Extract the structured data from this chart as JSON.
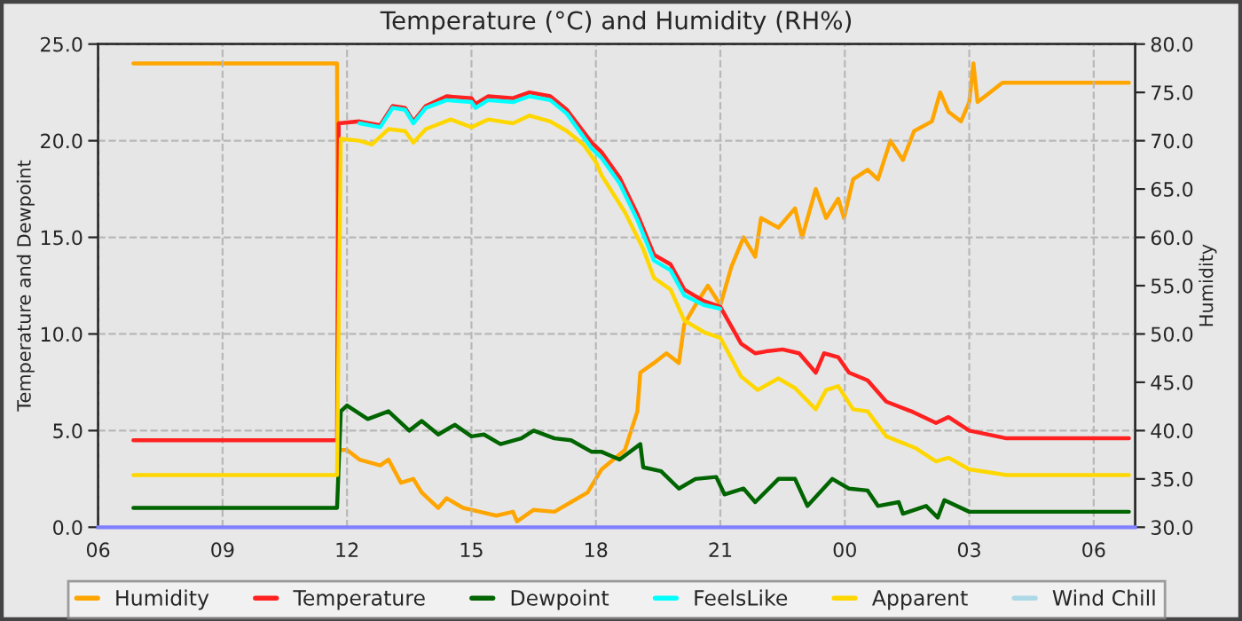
{
  "chart_data": {
    "type": "line",
    "title": "Temperature (°C) and Humidity (RH%)",
    "ylabel": "Temperature and Dewpoint",
    "y2label": "Humidity",
    "xlim": [
      6,
      31
    ],
    "xticks": [
      {
        "value": 6,
        "label": "06"
      },
      {
        "value": 9,
        "label": "09"
      },
      {
        "value": 12,
        "label": "12"
      },
      {
        "value": 15,
        "label": "15"
      },
      {
        "value": 18,
        "label": "18"
      },
      {
        "value": 21,
        "label": "21"
      },
      {
        "value": 24,
        "label": "00"
      },
      {
        "value": 27,
        "label": "03"
      },
      {
        "value": 30,
        "label": "06"
      }
    ],
    "ylim": [
      0,
      25
    ],
    "yticks": [
      {
        "value": 0,
        "label": "0.0"
      },
      {
        "value": 5,
        "label": "5.0"
      },
      {
        "value": 10,
        "label": "10.0"
      },
      {
        "value": 15,
        "label": "15.0"
      },
      {
        "value": 20,
        "label": "20.0"
      },
      {
        "value": 25,
        "label": "25.0"
      }
    ],
    "y2lim": [
      30,
      80
    ],
    "y2ticks": [
      {
        "value": 30,
        "label": "30.0"
      },
      {
        "value": 35,
        "label": "35.0"
      },
      {
        "value": 40,
        "label": "40.0"
      },
      {
        "value": 45,
        "label": "45.0"
      },
      {
        "value": 50,
        "label": "50.0"
      },
      {
        "value": 55,
        "label": "55.0"
      },
      {
        "value": 60,
        "label": "60.0"
      },
      {
        "value": 65,
        "label": "65.0"
      },
      {
        "value": 70,
        "label": "70.0"
      },
      {
        "value": 75,
        "label": "75.0"
      },
      {
        "value": 80,
        "label": "80.0"
      }
    ],
    "grid": true,
    "legend": "bottom",
    "line_style": "solid",
    "series": [
      {
        "name": "Humidity",
        "color": "#ffa500",
        "axis": "y2",
        "x": [
          6.85,
          11.76,
          11.78,
          12.0,
          12.3,
          12.8,
          13.0,
          13.3,
          13.6,
          13.8,
          14.2,
          14.4,
          14.8,
          15.2,
          15.6,
          16.0,
          16.1,
          16.5,
          17.0,
          17.4,
          17.8,
          18.14,
          18.7,
          19.0,
          19.07,
          19.4,
          19.7,
          20.0,
          20.13,
          20.4,
          20.7,
          21.0,
          21.27,
          21.56,
          21.84,
          21.98,
          22.4,
          22.8,
          22.97,
          23.3,
          23.55,
          23.84,
          23.98,
          24.2,
          24.55,
          24.8,
          25.1,
          25.4,
          25.67,
          26.1,
          26.3,
          26.5,
          26.8,
          27.0,
          27.1,
          27.2,
          27.5,
          27.8,
          30.85
        ],
        "values": [
          78,
          78,
          38,
          38,
          37,
          36.4,
          37,
          34.6,
          35,
          33.6,
          32,
          33,
          32,
          31.6,
          31.2,
          31.6,
          30.6,
          31.8,
          31.6,
          32.6,
          33.6,
          36,
          38,
          42,
          46,
          47,
          48,
          47,
          51,
          53,
          55,
          53,
          57,
          60,
          58,
          62,
          61,
          63,
          60,
          65,
          62,
          64,
          62,
          66,
          67,
          66,
          70,
          68,
          71,
          72,
          75,
          73,
          72,
          74,
          78,
          74,
          75,
          76,
          76
        ]
      },
      {
        "name": "Temperature",
        "color": "#ff2020",
        "x": [
          6.85,
          11.76,
          11.8,
          12.3,
          12.8,
          13.1,
          13.4,
          13.6,
          13.9,
          14.4,
          15.0,
          15.1,
          15.4,
          16.0,
          16.4,
          16.9,
          17.3,
          17.9,
          18.14,
          18.57,
          19.0,
          19.4,
          19.8,
          20.13,
          20.6,
          21.0,
          21.5,
          21.84,
          22.1,
          22.5,
          22.9,
          23.3,
          23.5,
          23.84,
          24.1,
          24.55,
          25.0,
          25.6,
          26.2,
          26.5,
          27.0,
          27.9,
          30.85
        ],
        "values": [
          4.5,
          4.5,
          20.9,
          21.0,
          20.8,
          21.8,
          21.7,
          21.0,
          21.8,
          22.3,
          22.2,
          21.9,
          22.3,
          22.2,
          22.5,
          22.3,
          21.6,
          19.9,
          19.4,
          18.1,
          16.2,
          14.1,
          13.6,
          12.3,
          11.7,
          11.4,
          9.5,
          9.0,
          9.1,
          9.2,
          9.0,
          8.0,
          9.0,
          8.8,
          8.0,
          7.6,
          6.5,
          6.0,
          5.4,
          5.7,
          5.0,
          4.6,
          4.6
        ]
      },
      {
        "name": "Dewpoint",
        "color": "#006400",
        "x": [
          6.85,
          11.76,
          11.85,
          12.0,
          12.5,
          13.0,
          13.5,
          13.8,
          14.2,
          14.6,
          15.0,
          15.3,
          15.7,
          16.2,
          16.5,
          17.0,
          17.4,
          17.9,
          18.14,
          18.57,
          19.07,
          19.14,
          19.57,
          20.0,
          20.4,
          20.9,
          21.1,
          21.56,
          21.84,
          22.4,
          22.8,
          23.1,
          23.7,
          24.1,
          24.55,
          24.8,
          25.3,
          25.4,
          25.96,
          26.24,
          26.4,
          27.0,
          27.9,
          30.85
        ],
        "values": [
          1.0,
          1.0,
          6.0,
          6.3,
          5.6,
          6.0,
          5.0,
          5.5,
          4.8,
          5.3,
          4.7,
          4.8,
          4.3,
          4.6,
          5.0,
          4.6,
          4.5,
          3.9,
          3.9,
          3.5,
          4.3,
          3.1,
          2.9,
          2.0,
          2.5,
          2.6,
          1.7,
          2.0,
          1.3,
          2.5,
          2.5,
          1.1,
          2.5,
          2.0,
          1.9,
          1.1,
          1.3,
          0.7,
          1.1,
          0.5,
          1.4,
          0.8,
          0.8,
          0.8
        ]
      },
      {
        "name": "FeelsLike",
        "color": "#00ffff",
        "x": [
          12.3,
          12.8,
          13.1,
          13.4,
          13.6,
          13.9,
          14.4,
          15.0,
          15.1,
          15.4,
          16.0,
          16.4,
          16.9,
          17.3,
          17.9,
          18.14,
          18.57,
          19.0,
          19.4,
          19.8,
          20.13,
          20.6,
          21.0
        ],
        "values": [
          20.9,
          20.7,
          21.7,
          21.6,
          20.9,
          21.7,
          22.1,
          22.0,
          21.7,
          22.1,
          22.0,
          22.3,
          22.1,
          21.4,
          19.6,
          19.1,
          17.8,
          15.9,
          13.8,
          13.3,
          12.0,
          11.5,
          11.3
        ]
      },
      {
        "name": "Apparent",
        "color": "#ffd700",
        "x": [
          6.85,
          11.76,
          11.85,
          12.3,
          12.6,
          13.0,
          13.4,
          13.6,
          13.9,
          14.5,
          15.0,
          15.4,
          16.0,
          16.4,
          16.9,
          17.3,
          17.7,
          18.0,
          18.14,
          18.7,
          19.14,
          19.4,
          19.8,
          20.13,
          20.6,
          21.0,
          21.5,
          21.9,
          22.4,
          22.8,
          23.3,
          23.55,
          23.84,
          24.2,
          24.55,
          25.0,
          25.7,
          26.2,
          26.5,
          27.0,
          27.9,
          30.85
        ],
        "values": [
          2.7,
          2.7,
          20.1,
          20.0,
          19.8,
          20.6,
          20.5,
          19.9,
          20.6,
          21.1,
          20.7,
          21.1,
          20.9,
          21.3,
          21.0,
          20.5,
          19.8,
          18.9,
          18.2,
          16.3,
          14.4,
          12.9,
          12.3,
          10.7,
          10.1,
          9.8,
          7.8,
          7.1,
          7.7,
          7.2,
          6.1,
          7.1,
          7.3,
          6.1,
          6.0,
          4.7,
          4.1,
          3.4,
          3.6,
          3.0,
          2.7,
          2.7
        ]
      },
      {
        "name": "Wind Chill",
        "color": "#add8e6"
      }
    ]
  }
}
